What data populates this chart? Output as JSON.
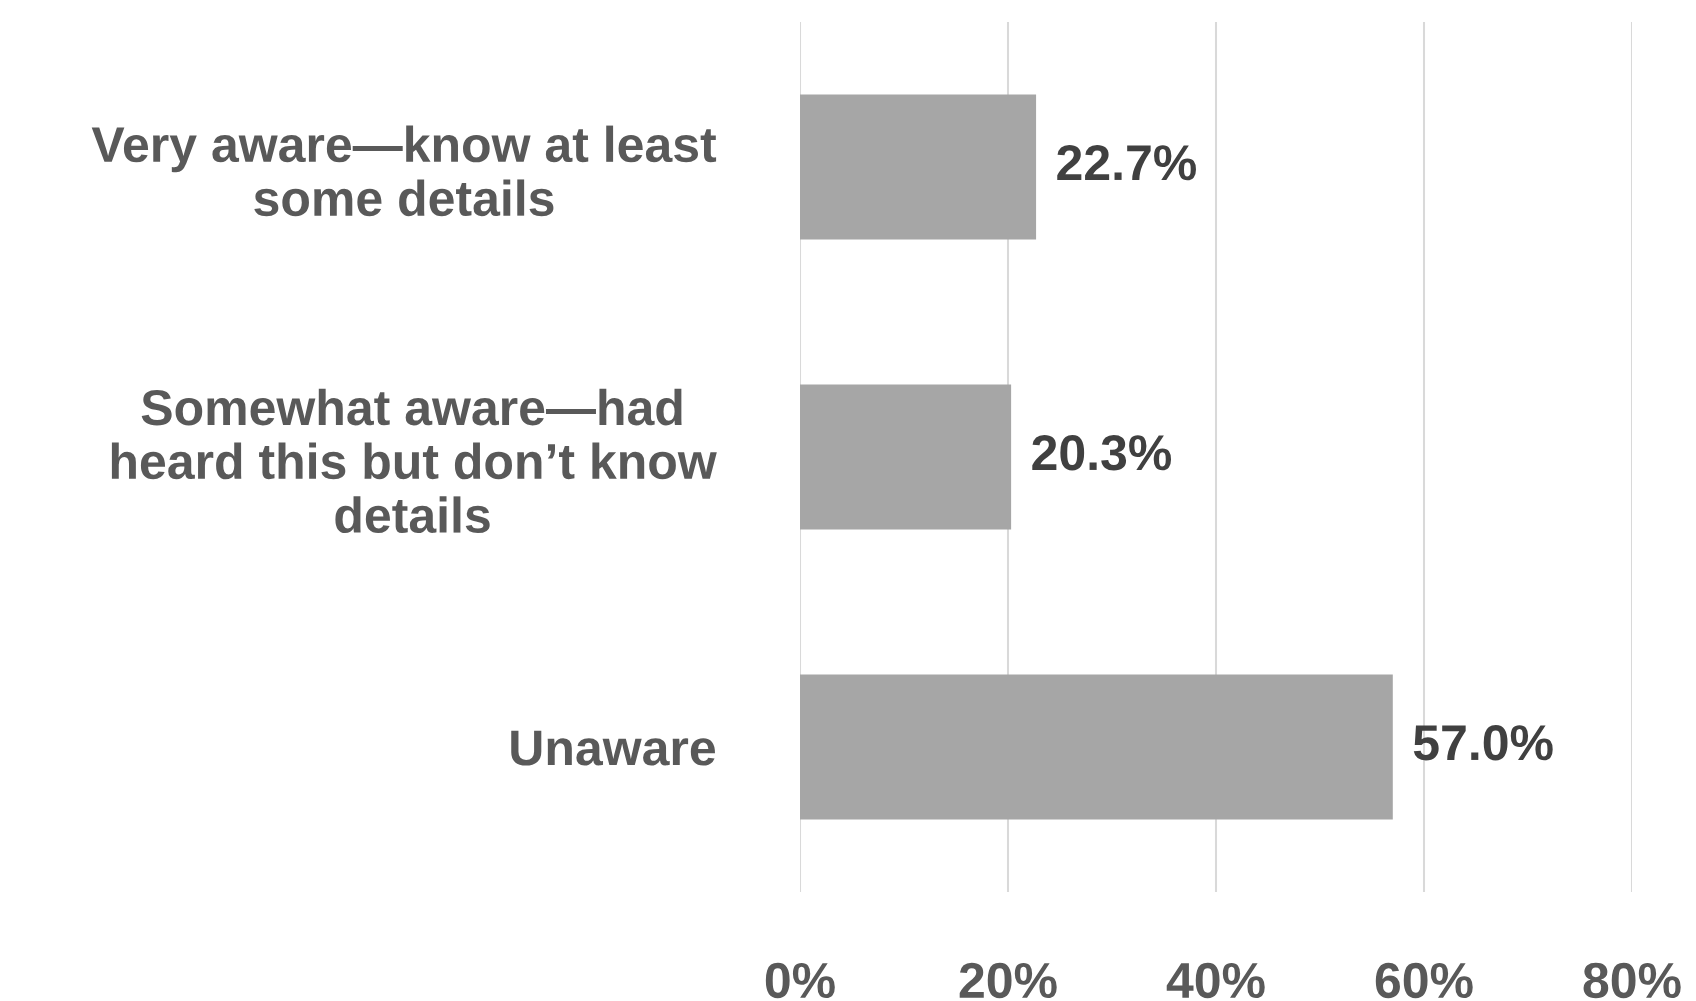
{
  "chart_data": {
    "type": "bar",
    "orientation": "horizontal",
    "categories": [
      "Very aware—know at least\nsome details",
      "Somewhat aware—had\nheard this but don’t know\ndetails",
      "Unaware"
    ],
    "values": [
      22.7,
      20.3,
      57.0
    ],
    "value_labels": [
      "22.7%",
      "20.3%",
      "57.0%"
    ],
    "color": "#a6a6a6",
    "xlim": [
      0,
      80
    ],
    "xticks": [
      {
        "value": 0,
        "label": "0%"
      },
      {
        "value": 20,
        "label": "20%"
      },
      {
        "value": 40,
        "label": "40%"
      },
      {
        "value": 60,
        "label": "60%"
      },
      {
        "value": 80,
        "label": "80%"
      }
    ],
    "grid": "x",
    "legend": false
  }
}
